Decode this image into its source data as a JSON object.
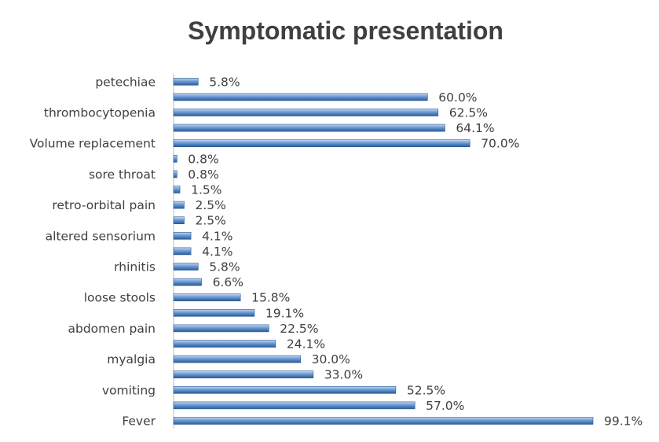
{
  "chart_data": {
    "type": "bar",
    "orientation": "horizontal",
    "title": "Symptomatic presentation",
    "xlabel": "",
    "ylabel": "",
    "xlim": [
      0,
      100
    ],
    "grid": false,
    "legend": "none",
    "bar_color": "#4a7ebb",
    "bar_highlight": "#c6d9f1",
    "categories": [
      "Fever",
      "",
      "vomiting",
      "",
      "myalgia",
      "",
      "abdomen pain",
      "",
      "loose stools",
      "",
      "rhinitis",
      "",
      "altered sensorium",
      "",
      "retro-orbital pain",
      "",
      "sore throat",
      "",
      "Volume replacement",
      "",
      "thrombocytopenia",
      "",
      "petechiae"
    ],
    "values": [
      99.1,
      57.0,
      52.5,
      33.0,
      30.0,
      24.1,
      22.5,
      19.1,
      15.8,
      6.6,
      5.8,
      4.1,
      4.1,
      2.5,
      2.5,
      1.5,
      0.8,
      0.8,
      70.0,
      64.1,
      62.5,
      60.0,
      5.8
    ],
    "value_labels": [
      "99.1%",
      "57.0%",
      "52.5%",
      "33.0%",
      "30.0%",
      "24.1%",
      "22.5%",
      "19.1%",
      "15.8%",
      "6.6%",
      "5.8%",
      "4.1%",
      "4.1%",
      "2.5%",
      "2.5%",
      "1.5%",
      "0.8%",
      "0.8%",
      "70.0%",
      "64.1%",
      "62.5%",
      "60.0%",
      "5.8%"
    ]
  }
}
